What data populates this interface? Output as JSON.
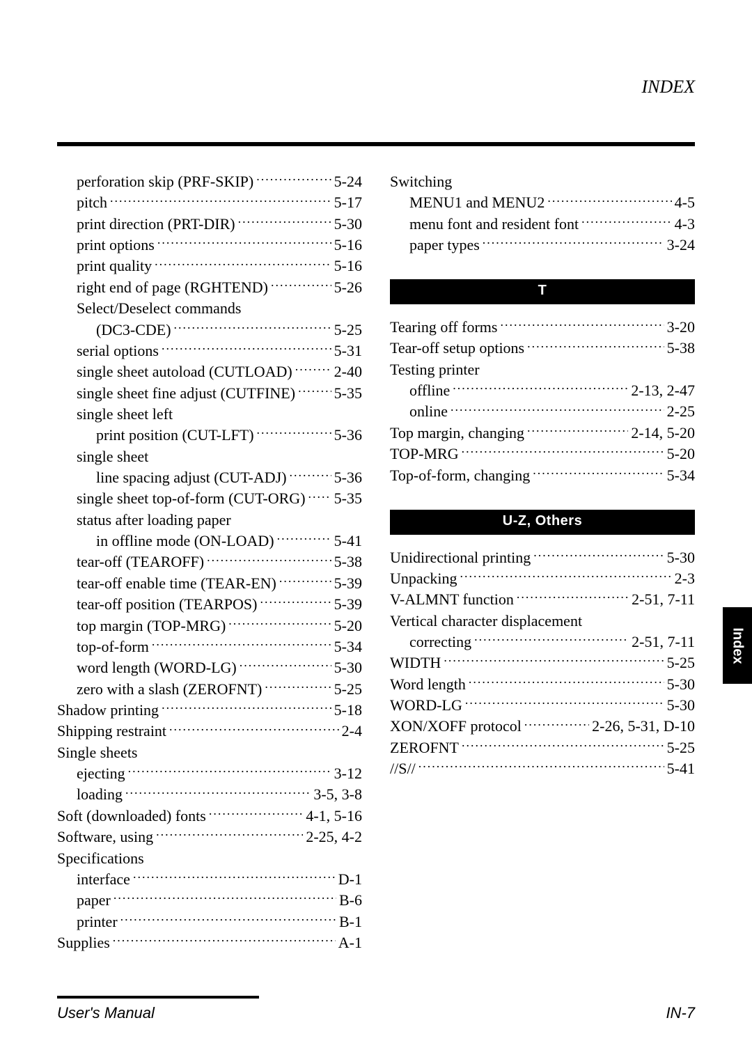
{
  "header": {
    "label": "INDEX"
  },
  "sideTab": {
    "label": "Index"
  },
  "footer": {
    "left": "User's Manual",
    "right": "IN-7"
  },
  "left_entries": [
    {
      "indent": 1,
      "label": "perforation skip (PRF-SKIP)",
      "page": "5-24"
    },
    {
      "indent": 1,
      "label": "pitch",
      "page": "5-17"
    },
    {
      "indent": 1,
      "label": "print direction (PRT-DIR)",
      "page": "5-30"
    },
    {
      "indent": 1,
      "label": "print options",
      "page": "5-16"
    },
    {
      "indent": 1,
      "label": "print quality",
      "page": "5-16"
    },
    {
      "indent": 1,
      "label": "right end of page (RGHTEND)",
      "page": "5-26"
    },
    {
      "indent": 1,
      "label": "Select/Deselect commands",
      "page": ""
    },
    {
      "indent": 2,
      "label": "(DC3-CDE)",
      "page": "5-25"
    },
    {
      "indent": 1,
      "label": "serial options",
      "page": "5-31"
    },
    {
      "indent": 1,
      "label": "single sheet autoload (CUTLOAD)",
      "page": "2-40"
    },
    {
      "indent": 1,
      "label": "single sheet fine adjust (CUTFINE)",
      "page": "5-35"
    },
    {
      "indent": 1,
      "label": "single sheet left",
      "page": ""
    },
    {
      "indent": 2,
      "label": "print position (CUT-LFT)",
      "page": "5-36"
    },
    {
      "indent": 1,
      "label": "single sheet",
      "page": ""
    },
    {
      "indent": 2,
      "label": "line spacing adjust (CUT-ADJ)",
      "page": "5-36"
    },
    {
      "indent": 1,
      "label": "single sheet top-of-form (CUT-ORG)",
      "page": "5-35"
    },
    {
      "indent": 1,
      "label": "status after loading paper",
      "page": ""
    },
    {
      "indent": 2,
      "label": "in offline mode (ON-LOAD)",
      "page": "5-41"
    },
    {
      "indent": 1,
      "label": "tear-off (TEAROFF)",
      "page": "5-38"
    },
    {
      "indent": 1,
      "label": "tear-off enable time (TEAR-EN)",
      "page": "5-39"
    },
    {
      "indent": 1,
      "label": "tear-off position (TEARPOS)",
      "page": "5-39"
    },
    {
      "indent": 1,
      "label": "top margin (TOP-MRG)",
      "page": "5-20"
    },
    {
      "indent": 1,
      "label": "top-of-form",
      "page": "5-34"
    },
    {
      "indent": 1,
      "label": "word length (WORD-LG)",
      "page": "5-30"
    },
    {
      "indent": 1,
      "label": "zero with a slash (ZEROFNT)",
      "page": "5-25"
    },
    {
      "indent": 0,
      "label": "Shadow printing",
      "page": "5-18"
    },
    {
      "indent": 0,
      "label": "Shipping restraint",
      "page": "2-4"
    },
    {
      "indent": 0,
      "label": "Single sheets",
      "page": ""
    },
    {
      "indent": 1,
      "label": "ejecting",
      "page": "3-12"
    },
    {
      "indent": 1,
      "label": "loading",
      "page": "3-5, 3-8"
    },
    {
      "indent": 0,
      "label": "Soft (downloaded) fonts",
      "page": "4-1, 5-16"
    },
    {
      "indent": 0,
      "label": "Software, using",
      "page": "2-25, 4-2"
    },
    {
      "indent": 0,
      "label": "Specifications",
      "page": ""
    },
    {
      "indent": 1,
      "label": "interface",
      "page": "D-1"
    },
    {
      "indent": 1,
      "label": "paper",
      "page": "B-6"
    },
    {
      "indent": 1,
      "label": "printer",
      "page": "B-1"
    },
    {
      "indent": 0,
      "label": "Supplies",
      "page": "A-1"
    }
  ],
  "right_groups": [
    {
      "heading": null,
      "entries": [
        {
          "indent": 0,
          "label": "Switching",
          "page": ""
        },
        {
          "indent": 1,
          "label": "MENU1 and MENU2",
          "page": "4-5"
        },
        {
          "indent": 1,
          "label": "menu font and resident font",
          "page": "4-3"
        },
        {
          "indent": 1,
          "label": "paper types",
          "page": "3-24"
        }
      ]
    },
    {
      "heading": "T",
      "entries": [
        {
          "indent": 0,
          "label": "Tearing off forms",
          "page": "3-20"
        },
        {
          "indent": 0,
          "label": "Tear-off setup options",
          "page": "5-38"
        },
        {
          "indent": 0,
          "label": "Testing printer",
          "page": ""
        },
        {
          "indent": 1,
          "label": "offline",
          "page": "2-13, 2-47"
        },
        {
          "indent": 1,
          "label": "online",
          "page": "2-25"
        },
        {
          "indent": 0,
          "label": "Top margin, changing",
          "page": "2-14, 5-20"
        },
        {
          "indent": 0,
          "label": "TOP-MRG",
          "page": "5-20"
        },
        {
          "indent": 0,
          "label": "Top-of-form, changing",
          "page": "5-34"
        }
      ]
    },
    {
      "heading": "U-Z, Others",
      "entries": [
        {
          "indent": 0,
          "label": "Unidirectional printing",
          "page": "5-30"
        },
        {
          "indent": 0,
          "label": "Unpacking",
          "page": "2-3"
        },
        {
          "indent": 0,
          "label": "V-ALMNT function",
          "page": "2-51, 7-11"
        },
        {
          "indent": 0,
          "label": "Vertical character displacement",
          "page": ""
        },
        {
          "indent": 1,
          "label": "correcting",
          "page": "2-51, 7-11"
        },
        {
          "indent": 0,
          "label": "WIDTH",
          "page": "5-25"
        },
        {
          "indent": 0,
          "label": "Word length",
          "page": "5-30"
        },
        {
          "indent": 0,
          "label": "WORD-LG",
          "page": "5-30"
        },
        {
          "indent": 0,
          "label": "XON/XOFF protocol",
          "page": "2-26, 5-31, D-10"
        },
        {
          "indent": 0,
          "label": "ZEROFNT",
          "page": "5-25"
        },
        {
          "indent": 0,
          "label": "//S//",
          "page": "5-41"
        }
      ]
    }
  ]
}
